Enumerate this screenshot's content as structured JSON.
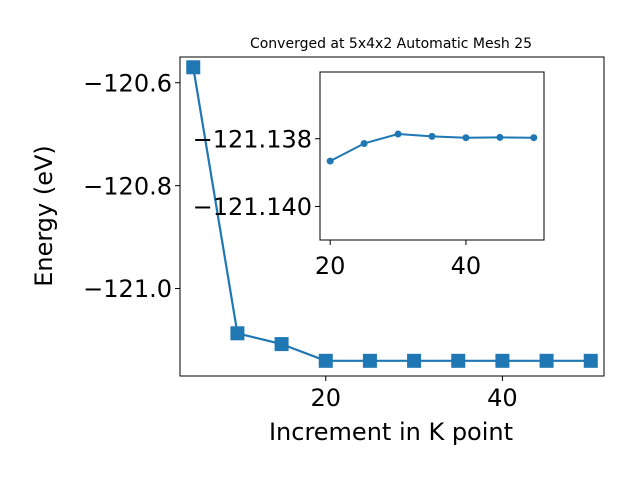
{
  "chart_data": [
    {
      "type": "line",
      "title": "Converged at 5x4x2 Automatic Mesh 25",
      "xlabel": "Increment in K point",
      "ylabel": "Energy (eV)",
      "x": [
        5,
        10,
        15,
        20,
        25,
        30,
        35,
        40,
        45,
        50
      ],
      "series": [
        {
          "values": [
            -120.57,
            -121.087,
            -121.108,
            -121.1405,
            -121.1405,
            -121.1405,
            -121.1405,
            -121.1405,
            -121.1405,
            -121.1405
          ],
          "marker": "square",
          "color": "#1f77b4"
        }
      ],
      "xlim": [
        3.5,
        51.5
      ],
      "ylim": [
        -121.17,
        -120.55
      ],
      "xticks": [
        20,
        40
      ],
      "yticks": [
        -121.0,
        -120.8,
        -120.6
      ],
      "xtick_labels": [
        "20",
        "40"
      ],
      "ytick_labels": [
        "−121.0",
        "−120.8",
        "−120.6"
      ],
      "grid": false,
      "legend": "none"
    },
    {
      "type": "line",
      "title": "",
      "xlabel": "",
      "ylabel": "",
      "x": [
        20,
        25,
        30,
        35,
        40,
        45,
        50
      ],
      "series": [
        {
          "values": [
            -121.13866,
            -121.13814,
            -121.13786,
            -121.13793,
            -121.13797,
            -121.13796,
            -121.13797
          ],
          "marker": "circle",
          "color": "#1f77b4"
        }
      ],
      "xlim": [
        18.5,
        51.5
      ],
      "ylim": [
        -121.14099,
        -121.13603
      ],
      "xticks": [
        20,
        40
      ],
      "yticks": [
        -121.14,
        -121.138
      ],
      "xtick_labels": [
        "20",
        "40"
      ],
      "ytick_labels": [
        "−121.140",
        "−121.138"
      ],
      "grid": false,
      "legend": "none"
    }
  ]
}
